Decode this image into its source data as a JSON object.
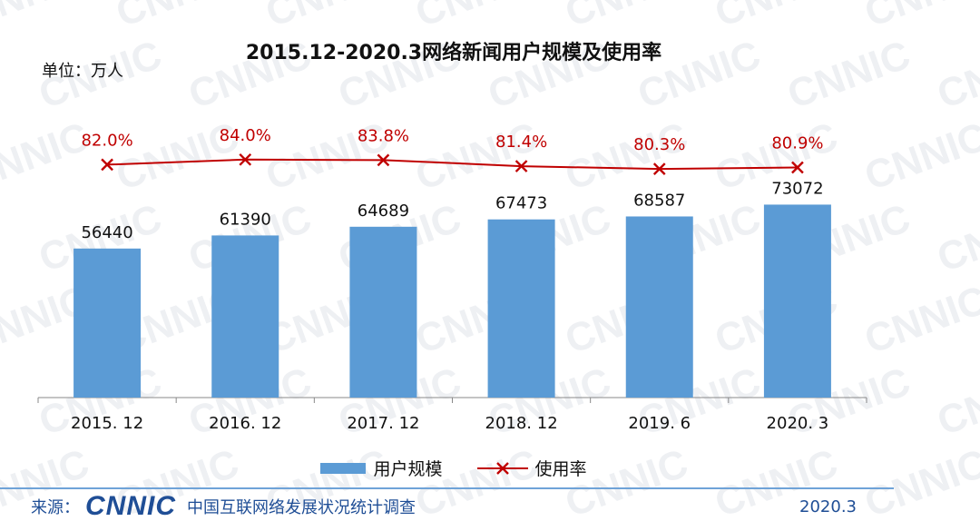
{
  "chart_data": {
    "type": "bar",
    "title": "2015.12-2020.3网络新闻用户规模及使用率",
    "unit_label": "单位：万人",
    "categories": [
      "2015. 12",
      "2016. 12",
      "2017. 12",
      "2018. 12",
      "2019. 6",
      "2020. 3"
    ],
    "series": [
      {
        "name": "用户规模",
        "type": "bar",
        "color": "#5b9bd5",
        "values": [
          56440,
          61390,
          64689,
          67473,
          68587,
          73072
        ]
      },
      {
        "name": "使用率",
        "type": "line",
        "color": "#c00000",
        "values": [
          82.0,
          84.0,
          83.8,
          81.4,
          80.3,
          80.9
        ],
        "labels": [
          "82.0%",
          "84.0%",
          "83.8%",
          "81.4%",
          "80.3%",
          "80.9%"
        ]
      }
    ],
    "bar_ylim": [
      0,
      110000
    ],
    "rate_ylim": [
      0,
      100
    ],
    "legend_position": "bottom",
    "grid": false
  },
  "footer": {
    "source_label": "来源：",
    "logo_text": "CNNIC",
    "org_name": "中国互联网络发展状况统计调查",
    "date": "2020.3"
  },
  "watermark_text": "CNNIC"
}
